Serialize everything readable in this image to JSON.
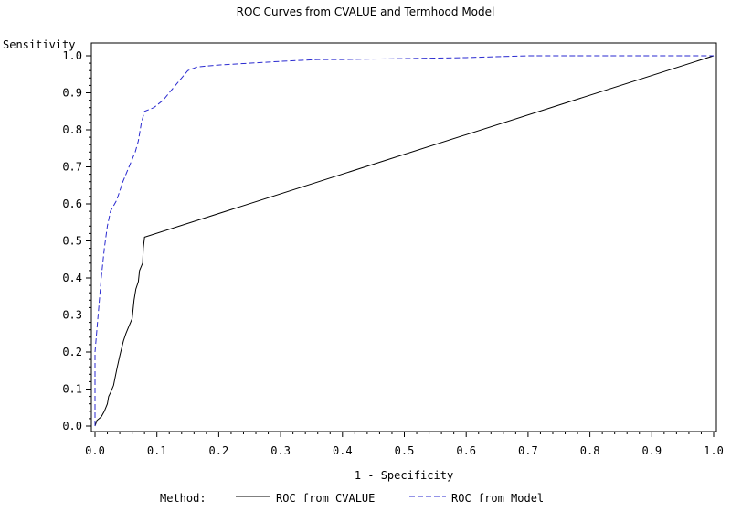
{
  "chart_data": {
    "type": "line",
    "title": "ROC Curves from CVALUE and Termhood Model",
    "xlabel": "1 - Specificity",
    "ylabel": "Sensitivity",
    "xlim": [
      0,
      1
    ],
    "ylim": [
      0,
      1
    ],
    "x_ticks": [
      "0.0",
      "0.1",
      "0.2",
      "0.3",
      "0.4",
      "0.5",
      "0.6",
      "0.7",
      "0.8",
      "0.9",
      "1.0"
    ],
    "y_ticks": [
      "0.0",
      "0.1",
      "0.2",
      "0.3",
      "0.4",
      "0.5",
      "0.6",
      "0.7",
      "0.8",
      "0.9",
      "1.0"
    ],
    "grid": false,
    "legend": {
      "placement": "bottom",
      "title": "Method:"
    },
    "series": [
      {
        "name": "ROC from CVALUE",
        "color": "#000000",
        "dash": "solid",
        "points": [
          [
            0.0,
            0.0
          ],
          [
            0.003,
            0.015
          ],
          [
            0.01,
            0.025
          ],
          [
            0.015,
            0.04
          ],
          [
            0.02,
            0.06
          ],
          [
            0.022,
            0.08
          ],
          [
            0.025,
            0.09
          ],
          [
            0.03,
            0.11
          ],
          [
            0.033,
            0.135
          ],
          [
            0.036,
            0.16
          ],
          [
            0.04,
            0.19
          ],
          [
            0.043,
            0.21
          ],
          [
            0.046,
            0.23
          ],
          [
            0.05,
            0.25
          ],
          [
            0.055,
            0.27
          ],
          [
            0.06,
            0.29
          ],
          [
            0.063,
            0.34
          ],
          [
            0.066,
            0.37
          ],
          [
            0.07,
            0.39
          ],
          [
            0.072,
            0.42
          ],
          [
            0.077,
            0.44
          ],
          [
            0.078,
            0.48
          ],
          [
            0.08,
            0.51
          ],
          [
            1.0,
            1.0
          ]
        ]
      },
      {
        "name": "ROC from Model",
        "color": "#2a2ad0",
        "dash": "dashed",
        "points": [
          [
            0.0,
            0.0
          ],
          [
            0.0,
            0.2
          ],
          [
            0.005,
            0.3
          ],
          [
            0.01,
            0.4
          ],
          [
            0.015,
            0.48
          ],
          [
            0.02,
            0.54
          ],
          [
            0.025,
            0.58
          ],
          [
            0.035,
            0.61
          ],
          [
            0.045,
            0.66
          ],
          [
            0.055,
            0.7
          ],
          [
            0.065,
            0.74
          ],
          [
            0.07,
            0.77
          ],
          [
            0.075,
            0.82
          ],
          [
            0.08,
            0.85
          ],
          [
            0.095,
            0.86
          ],
          [
            0.11,
            0.88
          ],
          [
            0.12,
            0.9
          ],
          [
            0.135,
            0.93
          ],
          [
            0.15,
            0.96
          ],
          [
            0.165,
            0.97
          ],
          [
            0.2,
            0.975
          ],
          [
            0.3,
            0.985
          ],
          [
            0.36,
            0.99
          ],
          [
            0.4,
            0.99
          ],
          [
            0.6,
            0.995
          ],
          [
            0.7,
            1.0
          ],
          [
            1.0,
            1.0
          ]
        ]
      }
    ]
  }
}
